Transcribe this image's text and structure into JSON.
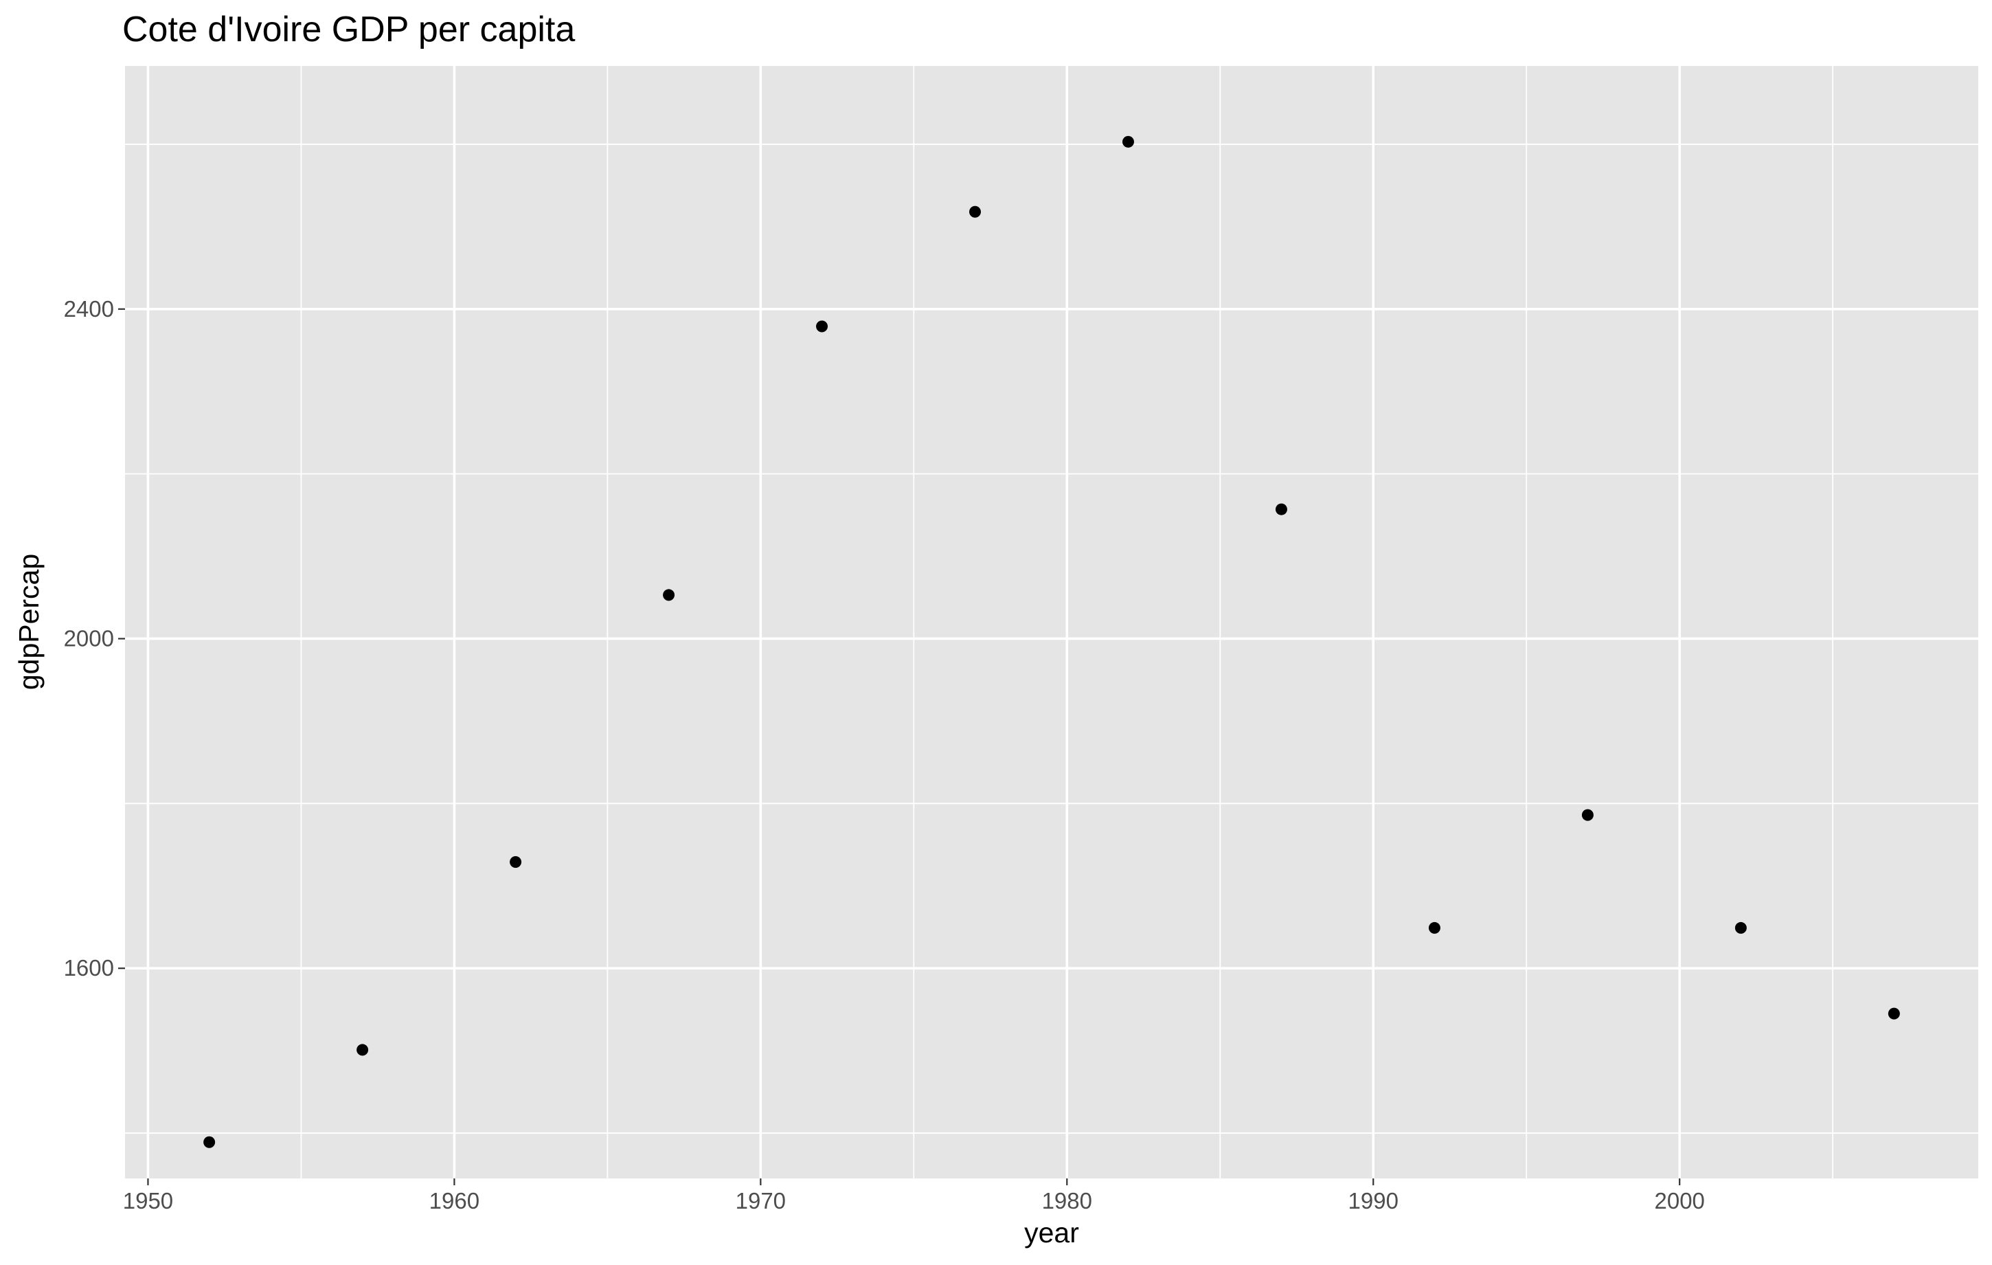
{
  "chart_data": {
    "type": "scatter",
    "title": "Cote d'Ivoire GDP per capita",
    "xlabel": "year",
    "ylabel": "gdpPercap",
    "xlim": [
      1949.25,
      2009.75
    ],
    "ylim": [
      1345,
      2695
    ],
    "x_major_ticks": [
      1950,
      1960,
      1970,
      1980,
      1990,
      2000
    ],
    "x_minor_ticks": [
      1955,
      1965,
      1975,
      1985,
      1995,
      2005
    ],
    "y_major_ticks": [
      1600,
      2000,
      2400
    ],
    "y_minor_ticks": [
      1400,
      1800,
      2200,
      2600
    ],
    "x_tick_labels": [
      "1950",
      "1960",
      "1970",
      "1980",
      "1990",
      "2000"
    ],
    "y_tick_labels": [
      "1600",
      "2000",
      "2400"
    ],
    "grid": true,
    "legend": "none",
    "colors": {
      "panel_background": "#e5e5e5",
      "grid": "#ffffff",
      "points": "#000000",
      "tick_text": "#4d4d4d",
      "tick_marks": "#333333"
    },
    "points": [
      {
        "x": 1952,
        "y": 1389
      },
      {
        "x": 1957,
        "y": 1501
      },
      {
        "x": 1962,
        "y": 1729
      },
      {
        "x": 1967,
        "y": 2053
      },
      {
        "x": 1972,
        "y": 2379
      },
      {
        "x": 1977,
        "y": 2518
      },
      {
        "x": 1982,
        "y": 2603
      },
      {
        "x": 1987,
        "y": 2157
      },
      {
        "x": 1992,
        "y": 1649
      },
      {
        "x": 1997,
        "y": 1786
      },
      {
        "x": 2002,
        "y": 1649
      },
      {
        "x": 2007,
        "y": 1545
      }
    ]
  }
}
